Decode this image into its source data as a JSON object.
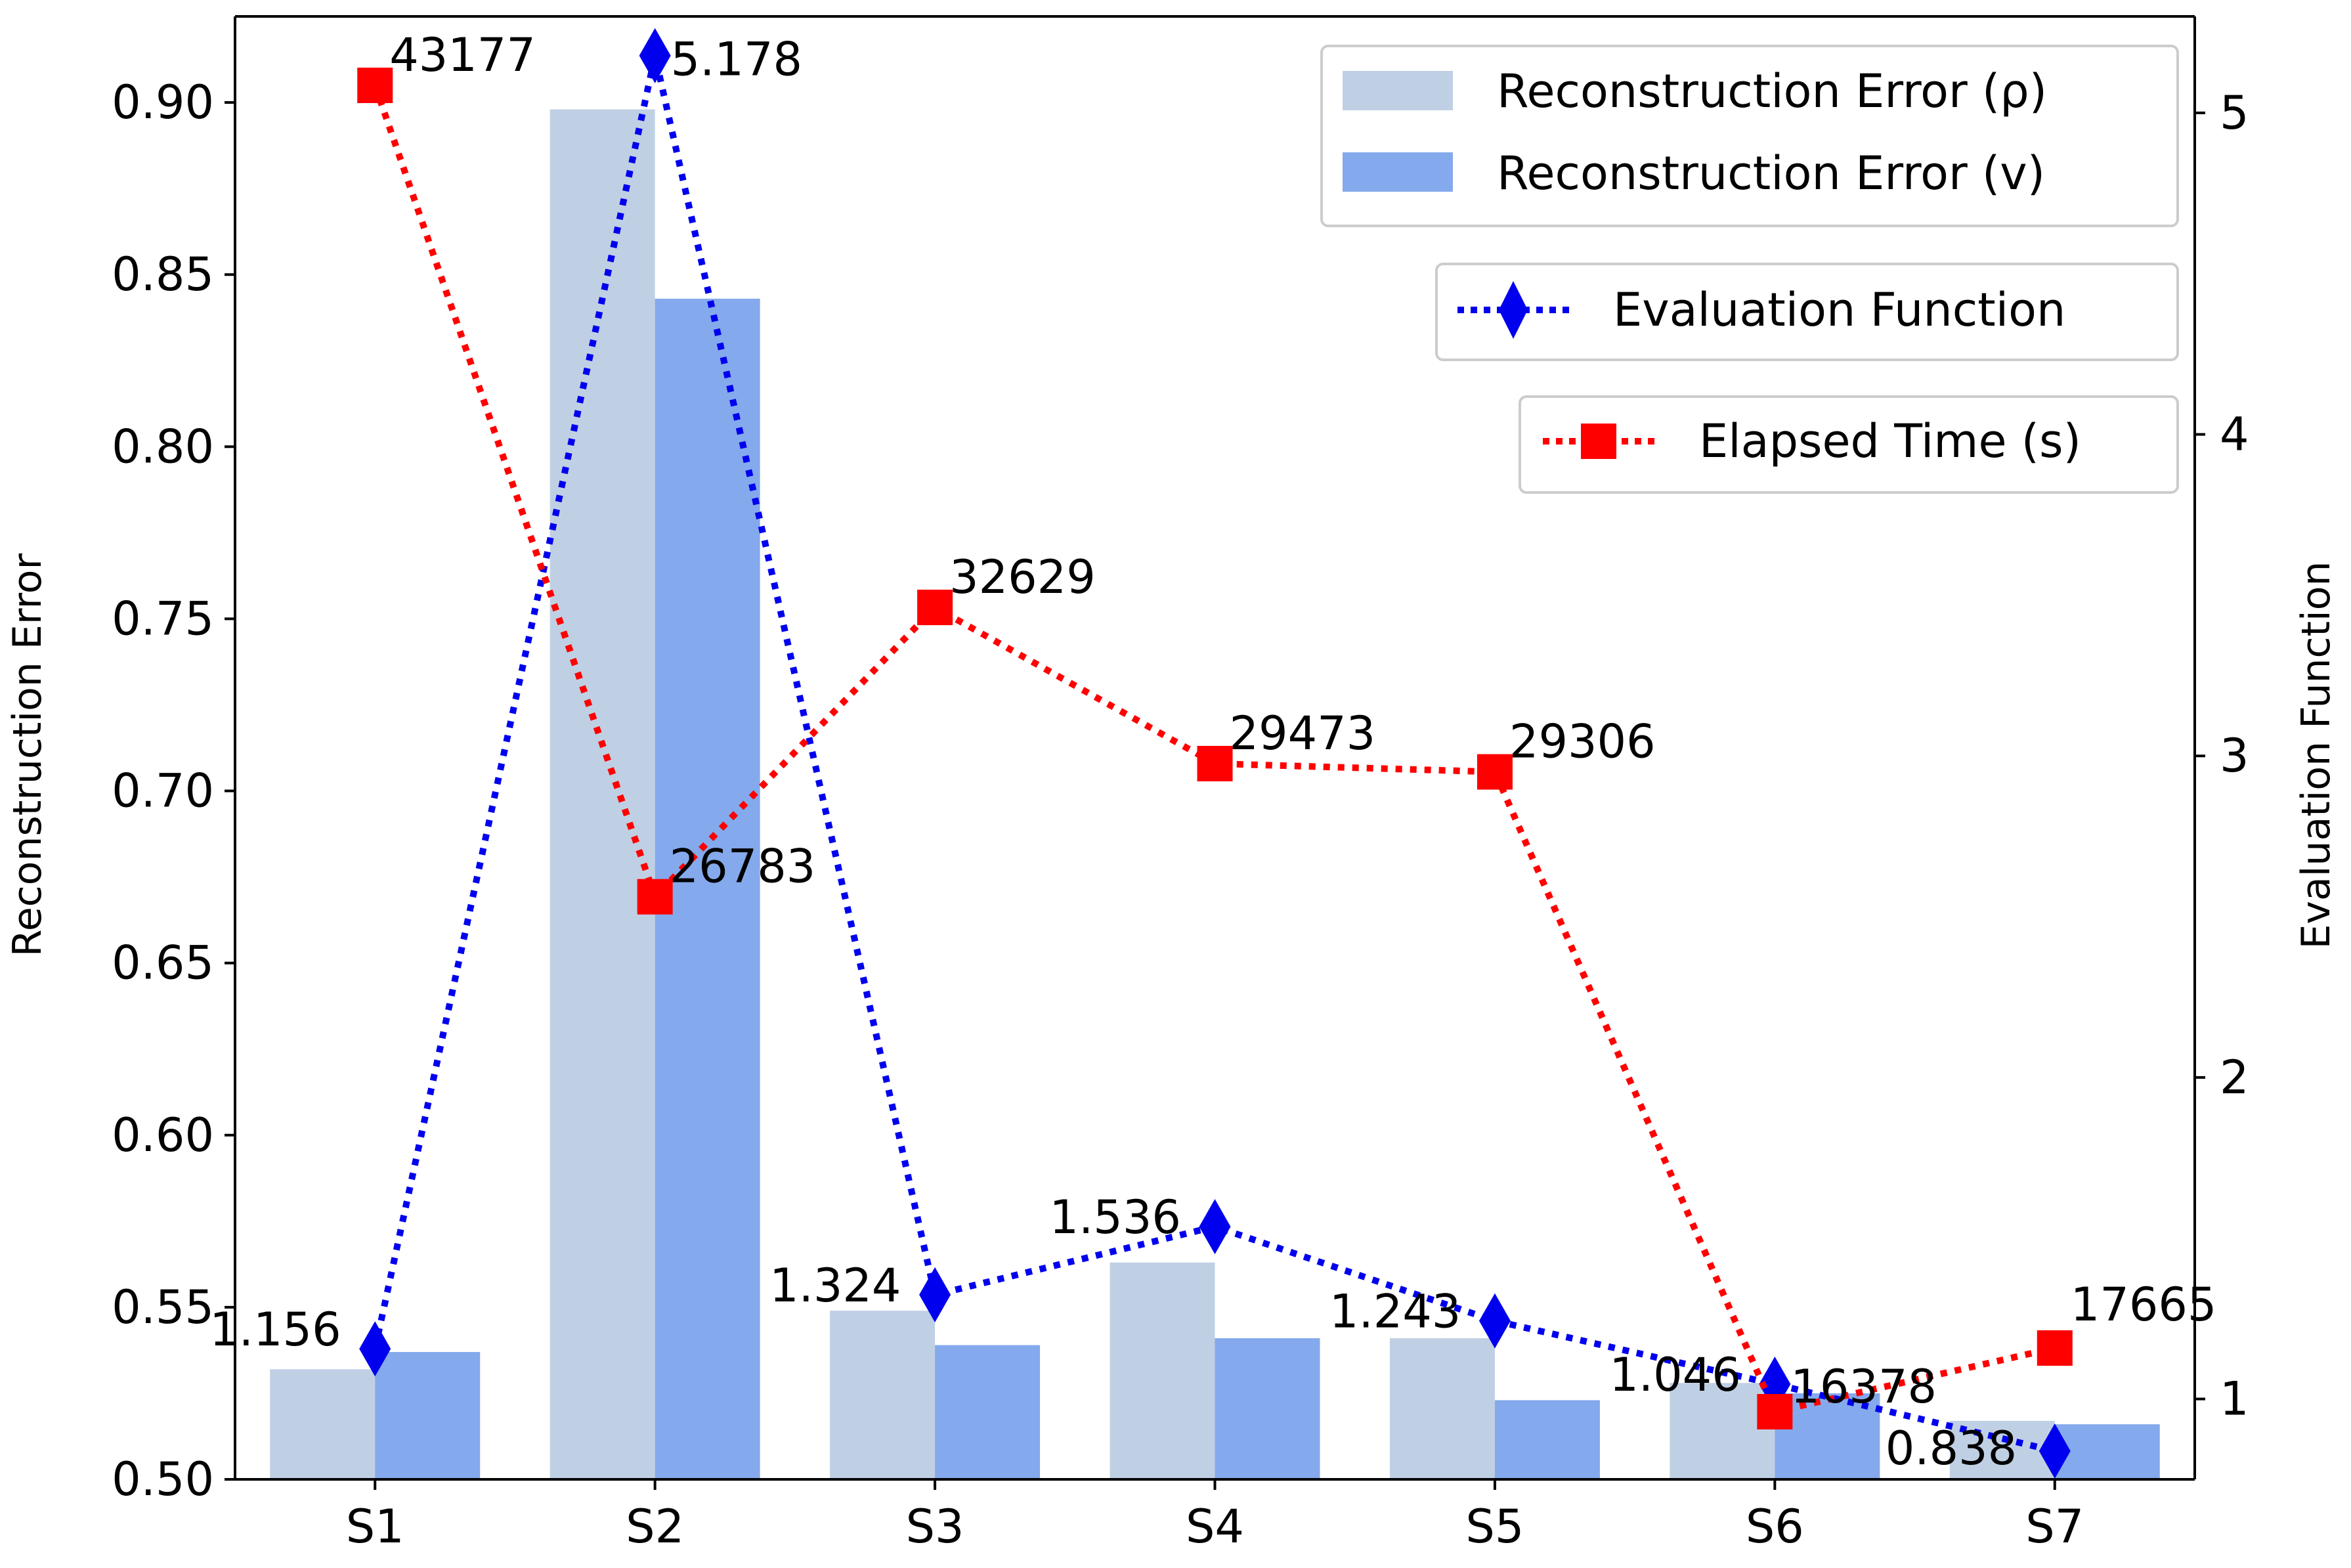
{
  "chart_data": {
    "type": "bar",
    "categories": [
      "S1",
      "S2",
      "S3",
      "S4",
      "S5",
      "S6",
      "S7"
    ],
    "ylabel_left": "Reconstruction Error",
    "ylabel_right": "Evaluation Function",
    "ylim_left": [
      0.5,
      0.925
    ],
    "ylim_right": [
      0.75,
      5.3
    ],
    "yticks_left": [
      "0.50",
      "0.55",
      "0.60",
      "0.65",
      "0.70",
      "0.75",
      "0.80",
      "0.85",
      "0.90"
    ],
    "yticks_right": [
      "1",
      "2",
      "3",
      "4",
      "5"
    ],
    "grid": false,
    "legend_placement": "top-right",
    "bar_series": [
      {
        "name": "Reconstruction Error (ρ)",
        "color": "#c0d0e4",
        "values": [
          0.532,
          0.898,
          0.549,
          0.563,
          0.541,
          0.528,
          0.517
        ]
      },
      {
        "name": "Reconstruction Error (v)",
        "color": "#84a9ec",
        "values": [
          0.537,
          0.843,
          0.539,
          0.541,
          0.523,
          0.525,
          0.516
        ]
      }
    ],
    "line_series": [
      {
        "name": "Evaluation Function",
        "color": "#0000ee",
        "marker": "diamond",
        "axis": "right",
        "values": [
          1.156,
          5.178,
          1.324,
          1.536,
          1.243,
          1.046,
          0.838
        ],
        "labels": [
          "1.156",
          "5.178",
          "1.324",
          "1.536",
          "1.243",
          "1.046",
          "0.838"
        ]
      },
      {
        "name": "Elapsed Time (s)",
        "color": "#ff0000",
        "marker": "square",
        "axis": "left-positioned",
        "values": [
          43177,
          26783,
          32629,
          29473,
          29306,
          16378,
          17665
        ],
        "labels": [
          "43177",
          "26783",
          "32629",
          "29473",
          "29306",
          "16378",
          "17665"
        ]
      }
    ]
  }
}
